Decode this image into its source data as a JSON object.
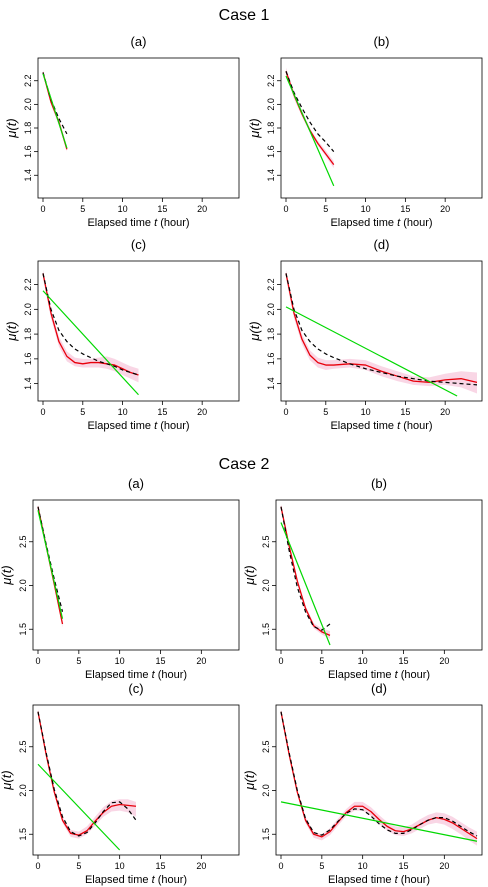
{
  "figure": {
    "sections": [
      {
        "title": "Case 1"
      },
      {
        "title": "Case 2"
      }
    ]
  },
  "colors": {
    "fit": "#e8000b",
    "truth": "#000000",
    "linear": "#00d800",
    "band": "#f7c8dc",
    "axis": "#000000"
  },
  "chart_data": [
    {
      "case": "Case 1",
      "panel": "(a)",
      "type": "line",
      "xlabel": "Elapsed time t (hour)",
      "ylabel": "μ(t)",
      "xlim": [
        0,
        24
      ],
      "ylim": [
        1.25,
        2.35
      ],
      "xticks": [
        0,
        5,
        10,
        15,
        20
      ],
      "yticks": [
        1.4,
        1.6,
        1.8,
        2.0,
        2.2
      ],
      "series": [
        {
          "style": "band",
          "x": [
            0,
            1,
            2,
            3
          ],
          "lower": [
            2.25,
            2.0,
            1.82,
            1.6
          ],
          "upper": [
            2.29,
            2.05,
            1.87,
            1.65
          ]
        },
        {
          "style": "solid-red",
          "x": [
            0,
            1,
            2,
            3
          ],
          "y": [
            2.27,
            2.02,
            1.85,
            1.62
          ]
        },
        {
          "style": "dashed-black",
          "x": [
            0,
            1,
            2,
            3
          ],
          "y": [
            2.27,
            2.04,
            1.88,
            1.75
          ]
        },
        {
          "style": "solid-green",
          "x": [
            0,
            3
          ],
          "y": [
            2.26,
            1.63
          ]
        }
      ]
    },
    {
      "case": "Case 1",
      "panel": "(b)",
      "type": "line",
      "xlabel": "Elapsed time t (hour)",
      "ylabel": "μ(t)",
      "xlim": [
        0,
        24
      ],
      "ylim": [
        1.25,
        2.35
      ],
      "xticks": [
        0,
        5,
        10,
        15,
        20
      ],
      "yticks": [
        1.4,
        1.6,
        1.8,
        2.0,
        2.2
      ],
      "series": [
        {
          "style": "band",
          "x": [
            0,
            1,
            2,
            3,
            4,
            5,
            6
          ],
          "lower": [
            2.25,
            2.05,
            1.9,
            1.76,
            1.65,
            1.56,
            1.46
          ],
          "upper": [
            2.31,
            2.11,
            1.95,
            1.8,
            1.69,
            1.61,
            1.52
          ]
        },
        {
          "style": "solid-red",
          "x": [
            0,
            1,
            2,
            3,
            4,
            5,
            6
          ],
          "y": [
            2.28,
            2.08,
            1.92,
            1.78,
            1.67,
            1.58,
            1.49
          ]
        },
        {
          "style": "dashed-black",
          "x": [
            0,
            1,
            2,
            3,
            4,
            5,
            6
          ],
          "y": [
            2.28,
            2.1,
            1.97,
            1.85,
            1.75,
            1.68,
            1.6
          ]
        },
        {
          "style": "solid-green",
          "x": [
            0,
            6
          ],
          "y": [
            2.24,
            1.31
          ]
        }
      ]
    },
    {
      "case": "Case 1",
      "panel": "(c)",
      "type": "line",
      "xlabel": "Elapsed time t (hour)",
      "ylabel": "μ(t)",
      "xlim": [
        0,
        24
      ],
      "ylim": [
        1.3,
        2.35
      ],
      "xticks": [
        0,
        5,
        10,
        15,
        20
      ],
      "yticks": [
        1.4,
        1.6,
        1.8,
        2.0,
        2.2
      ],
      "series": [
        {
          "style": "band",
          "x": [
            0,
            1,
            2,
            3,
            4,
            5,
            6,
            7,
            8,
            9,
            10,
            11,
            12
          ],
          "lower": [
            2.25,
            1.93,
            1.7,
            1.58,
            1.54,
            1.53,
            1.53,
            1.53,
            1.52,
            1.5,
            1.47,
            1.44,
            1.41
          ],
          "upper": [
            2.32,
            2.0,
            1.78,
            1.66,
            1.61,
            1.6,
            1.6,
            1.61,
            1.62,
            1.6,
            1.57,
            1.54,
            1.52
          ]
        },
        {
          "style": "solid-red",
          "x": [
            0,
            1,
            2,
            3,
            4,
            5,
            6,
            7,
            8,
            9,
            10,
            11,
            12
          ],
          "y": [
            2.29,
            1.97,
            1.74,
            1.62,
            1.57,
            1.56,
            1.57,
            1.57,
            1.56,
            1.55,
            1.52,
            1.49,
            1.47
          ]
        },
        {
          "style": "dashed-black",
          "x": [
            0,
            1,
            2,
            3,
            4,
            5,
            6,
            7,
            8,
            9,
            10,
            11,
            12
          ],
          "y": [
            2.29,
            2.0,
            1.83,
            1.74,
            1.68,
            1.64,
            1.61,
            1.58,
            1.56,
            1.54,
            1.51,
            1.49,
            1.47
          ]
        },
        {
          "style": "solid-green",
          "x": [
            0,
            12
          ],
          "y": [
            2.15,
            1.31
          ]
        }
      ]
    },
    {
      "case": "Case 1",
      "panel": "(d)",
      "type": "line",
      "xlabel": "Elapsed time t (hour)",
      "ylabel": "μ(t)",
      "xlim": [
        0,
        24
      ],
      "ylim": [
        1.3,
        2.35
      ],
      "xticks": [
        0,
        5,
        10,
        15,
        20
      ],
      "yticks": [
        1.4,
        1.6,
        1.8,
        2.0,
        2.2
      ],
      "series": [
        {
          "style": "band",
          "x": [
            0,
            1,
            2,
            3,
            4,
            5,
            6,
            8,
            10,
            12,
            14,
            16,
            18,
            20,
            22,
            24
          ],
          "lower": [
            2.25,
            1.93,
            1.72,
            1.59,
            1.53,
            1.51,
            1.52,
            1.53,
            1.51,
            1.46,
            1.42,
            1.39,
            1.38,
            1.39,
            1.37,
            1.32
          ],
          "upper": [
            2.32,
            2.0,
            1.8,
            1.67,
            1.61,
            1.59,
            1.59,
            1.6,
            1.59,
            1.54,
            1.5,
            1.46,
            1.45,
            1.48,
            1.5,
            1.49
          ]
        },
        {
          "style": "solid-red",
          "x": [
            0,
            1,
            2,
            3,
            4,
            5,
            6,
            8,
            10,
            12,
            14,
            16,
            18,
            20,
            22,
            24
          ],
          "y": [
            2.29,
            1.97,
            1.76,
            1.63,
            1.57,
            1.55,
            1.55,
            1.56,
            1.55,
            1.5,
            1.46,
            1.42,
            1.41,
            1.43,
            1.44,
            1.41
          ]
        },
        {
          "style": "dashed-black",
          "x": [
            0,
            1,
            2,
            3,
            4,
            5,
            6,
            8,
            10,
            12,
            14,
            16,
            18,
            20,
            22,
            24
          ],
          "y": [
            2.29,
            2.0,
            1.83,
            1.74,
            1.68,
            1.64,
            1.61,
            1.56,
            1.52,
            1.49,
            1.46,
            1.44,
            1.42,
            1.41,
            1.4,
            1.39
          ]
        },
        {
          "style": "solid-green",
          "x": [
            0,
            21.5
          ],
          "y": [
            2.02,
            1.3
          ]
        }
      ]
    },
    {
      "case": "Case 2",
      "panel": "(a)",
      "type": "line",
      "xlabel": "Elapsed time t (hour)",
      "ylabel": "μ(t)",
      "xlim": [
        0,
        24
      ],
      "ylim": [
        1.32,
        2.92
      ],
      "xticks": [
        0,
        5,
        10,
        15,
        20
      ],
      "yticks": [
        1.5,
        2.0,
        2.5
      ],
      "series": [
        {
          "style": "band",
          "x": [
            0,
            1,
            2,
            3
          ],
          "lower": [
            2.88,
            2.43,
            1.99,
            1.52
          ],
          "upper": [
            2.92,
            2.48,
            2.04,
            1.6
          ]
        },
        {
          "style": "solid-red",
          "x": [
            0,
            1,
            2,
            3
          ],
          "y": [
            2.9,
            2.45,
            2.01,
            1.56
          ]
        },
        {
          "style": "dashed-black",
          "x": [
            0,
            1,
            2,
            3
          ],
          "y": [
            2.9,
            2.47,
            2.07,
            1.7
          ]
        },
        {
          "style": "solid-green",
          "x": [
            0,
            3
          ],
          "y": [
            2.86,
            1.62
          ]
        }
      ]
    },
    {
      "case": "Case 2",
      "panel": "(b)",
      "type": "line",
      "xlabel": "Elapsed time t (hour)",
      "ylabel": "μ(t)",
      "xlim": [
        0,
        24
      ],
      "ylim": [
        1.32,
        2.92
      ],
      "xticks": [
        0,
        5,
        10,
        15,
        20
      ],
      "yticks": [
        1.5,
        2.0,
        2.5
      ],
      "series": [
        {
          "style": "band",
          "x": [
            0,
            1,
            2,
            3,
            4,
            5,
            6
          ],
          "lower": [
            2.86,
            2.42,
            2.02,
            1.71,
            1.51,
            1.44,
            1.39
          ],
          "upper": [
            2.93,
            2.48,
            2.08,
            1.77,
            1.57,
            1.51,
            1.48
          ]
        },
        {
          "style": "solid-red",
          "x": [
            0,
            1,
            2,
            3,
            4,
            5,
            6
          ],
          "y": [
            2.9,
            2.45,
            2.05,
            1.74,
            1.54,
            1.47,
            1.43
          ]
        },
        {
          "style": "dashed-black",
          "x": [
            0,
            1,
            2,
            3,
            4,
            5,
            6
          ],
          "y": [
            2.9,
            2.4,
            1.98,
            1.7,
            1.53,
            1.49,
            1.56
          ]
        },
        {
          "style": "solid-green",
          "x": [
            0,
            6
          ],
          "y": [
            2.72,
            1.32
          ]
        }
      ]
    },
    {
      "case": "Case 2",
      "panel": "(c)",
      "type": "line",
      "xlabel": "Elapsed time t (hour)",
      "ylabel": "μ(t)",
      "xlim": [
        0,
        24
      ],
      "ylim": [
        1.32,
        2.92
      ],
      "xticks": [
        0,
        5,
        10,
        15,
        20
      ],
      "yticks": [
        1.5,
        2.0,
        2.5
      ],
      "series": [
        {
          "style": "band",
          "x": [
            0,
            1,
            2,
            3,
            4,
            5,
            6,
            7,
            8,
            9,
            10,
            11,
            12
          ],
          "lower": [
            2.86,
            2.38,
            1.95,
            1.63,
            1.47,
            1.45,
            1.5,
            1.6,
            1.7,
            1.76,
            1.77,
            1.75,
            1.7
          ],
          "upper": [
            2.93,
            2.44,
            2.02,
            1.7,
            1.55,
            1.53,
            1.59,
            1.7,
            1.81,
            1.88,
            1.9,
            1.9,
            1.87
          ]
        },
        {
          "style": "solid-red",
          "x": [
            0,
            1,
            2,
            3,
            4,
            5,
            6,
            7,
            8,
            9,
            10,
            11,
            12
          ],
          "y": [
            2.9,
            2.41,
            1.98,
            1.66,
            1.51,
            1.49,
            1.54,
            1.65,
            1.75,
            1.82,
            1.84,
            1.83,
            1.82
          ]
        },
        {
          "style": "dashed-black",
          "x": [
            0,
            1,
            2,
            3,
            4,
            5,
            6,
            7,
            8,
            9,
            10,
            11,
            12
          ],
          "y": [
            2.9,
            2.43,
            2.01,
            1.7,
            1.53,
            1.48,
            1.52,
            1.63,
            1.76,
            1.86,
            1.87,
            1.79,
            1.66
          ]
        },
        {
          "style": "solid-green",
          "x": [
            0,
            10
          ],
          "y": [
            2.3,
            1.32
          ]
        }
      ]
    },
    {
      "case": "Case 2",
      "panel": "(d)",
      "type": "line",
      "xlabel": "Elapsed time t (hour)",
      "ylabel": "μ(t)",
      "xlim": [
        0,
        24
      ],
      "ylim": [
        1.32,
        2.92
      ],
      "xticks": [
        0,
        5,
        10,
        15,
        20
      ],
      "yticks": [
        1.5,
        2.0,
        2.5
      ],
      "series": [
        {
          "style": "band",
          "x": [
            0,
            1,
            2,
            3,
            4,
            5,
            6,
            7,
            8,
            9,
            10,
            11,
            12,
            13,
            14,
            15,
            16,
            17,
            18,
            19,
            20,
            21,
            22,
            23,
            24
          ],
          "lower": [
            2.86,
            2.38,
            1.95,
            1.63,
            1.46,
            1.43,
            1.49,
            1.6,
            1.71,
            1.77,
            1.77,
            1.71,
            1.62,
            1.54,
            1.49,
            1.48,
            1.51,
            1.56,
            1.61,
            1.63,
            1.61,
            1.56,
            1.5,
            1.43,
            1.37
          ],
          "upper": [
            2.93,
            2.44,
            2.01,
            1.7,
            1.53,
            1.5,
            1.57,
            1.68,
            1.79,
            1.87,
            1.87,
            1.81,
            1.72,
            1.64,
            1.59,
            1.58,
            1.61,
            1.67,
            1.72,
            1.75,
            1.74,
            1.7,
            1.64,
            1.58,
            1.53
          ]
        },
        {
          "style": "solid-red",
          "x": [
            0,
            1,
            2,
            3,
            4,
            5,
            6,
            7,
            8,
            9,
            10,
            11,
            12,
            13,
            14,
            15,
            16,
            17,
            18,
            19,
            20,
            21,
            22,
            23,
            24
          ],
          "y": [
            2.9,
            2.41,
            1.98,
            1.66,
            1.5,
            1.47,
            1.53,
            1.64,
            1.75,
            1.82,
            1.82,
            1.76,
            1.67,
            1.59,
            1.54,
            1.53,
            1.56,
            1.61,
            1.66,
            1.69,
            1.67,
            1.63,
            1.57,
            1.51,
            1.45
          ]
        },
        {
          "style": "dashed-black",
          "x": [
            0,
            1,
            2,
            3,
            4,
            5,
            6,
            7,
            8,
            9,
            10,
            11,
            12,
            13,
            14,
            15,
            16,
            17,
            18,
            19,
            20,
            21,
            22,
            23,
            24
          ],
          "y": [
            2.9,
            2.43,
            2.0,
            1.68,
            1.52,
            1.49,
            1.55,
            1.65,
            1.74,
            1.79,
            1.78,
            1.71,
            1.62,
            1.55,
            1.51,
            1.51,
            1.55,
            1.61,
            1.66,
            1.69,
            1.69,
            1.65,
            1.59,
            1.53,
            1.48
          ]
        },
        {
          "style": "solid-green",
          "x": [
            0,
            24
          ],
          "y": [
            1.87,
            1.42
          ]
        }
      ]
    }
  ]
}
